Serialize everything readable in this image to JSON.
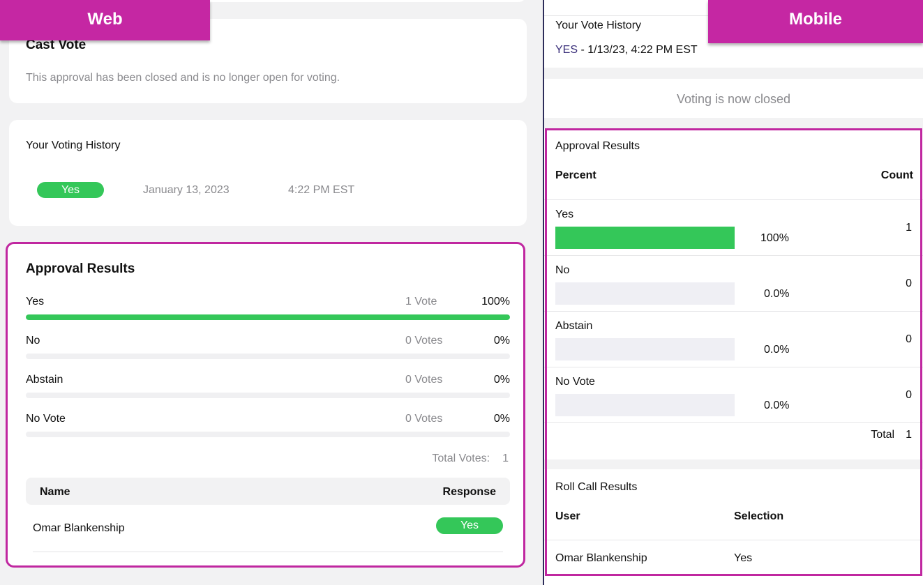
{
  "labels": {
    "web": "Web",
    "mobile": "Mobile"
  },
  "colors": {
    "accent": "#c527a3",
    "success": "#34c759",
    "muted": "#8a8a8e"
  },
  "web": {
    "cast_vote": {
      "title": "Cast Vote",
      "message": "This approval has been closed and is no longer open for voting."
    },
    "voting_history": {
      "title": "Your Voting History",
      "response": "Yes",
      "date": "January 13, 2023",
      "time": "4:22 PM EST"
    },
    "approval_results": {
      "title": "Approval Results",
      "options": [
        {
          "label": "Yes",
          "votes": "1 Vote",
          "percent": "100%",
          "fill": 1.0
        },
        {
          "label": "No",
          "votes": "0 Votes",
          "percent": "0%",
          "fill": 0
        },
        {
          "label": "Abstain",
          "votes": "0 Votes",
          "percent": "0%",
          "fill": 0
        },
        {
          "label": "No Vote",
          "votes": "0 Votes",
          "percent": "0%",
          "fill": 0
        }
      ],
      "total_label": "Total Votes:",
      "total_value": "1",
      "table": {
        "headers": {
          "name": "Name",
          "response": "Response"
        },
        "rows": [
          {
            "name": "Omar Blankenship",
            "response": "Yes"
          }
        ]
      }
    }
  },
  "mobile": {
    "vote_history": {
      "title": "Your Vote History",
      "response": "YES",
      "detail": " - 1/13/23, 4:22 PM EST"
    },
    "closed_message": "Voting is now closed",
    "approval_results": {
      "title": "Approval Results",
      "header_left": "Percent",
      "header_right": "Count",
      "options": [
        {
          "label": "Yes",
          "percent": "100%",
          "count": "1",
          "fill": 1.0
        },
        {
          "label": "No",
          "percent": "0.0%",
          "count": "0",
          "fill": 0
        },
        {
          "label": "Abstain",
          "percent": "0.0%",
          "count": "0",
          "fill": 0
        },
        {
          "label": "No Vote",
          "percent": "0.0%",
          "count": "0",
          "fill": 0
        }
      ],
      "total_label": "Total",
      "total_value": "1"
    },
    "roll_call": {
      "title": "Roll Call Results",
      "header_user": "User",
      "header_selection": "Selection",
      "rows": [
        {
          "user": "Omar Blankenship",
          "selection": "Yes"
        }
      ]
    }
  }
}
